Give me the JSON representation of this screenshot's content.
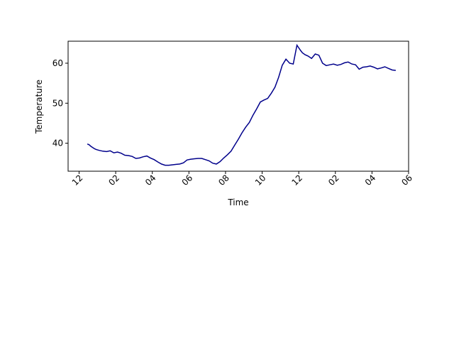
{
  "chart_data": {
    "type": "line",
    "xlabel": "Time",
    "ylabel": "Temperature",
    "x_ticks": [
      "12",
      "02",
      "04",
      "06",
      "08",
      "10",
      "12",
      "02",
      "04",
      "06"
    ],
    "x_range_hours": [
      -0.6,
      18.0
    ],
    "ylim": [
      33.0,
      65.5
    ],
    "y_ticks": [
      40,
      50,
      60
    ],
    "grid": false,
    "legend": "none",
    "series": [
      {
        "color": "#00008b",
        "x_hours": [
          0.45,
          0.55,
          0.65,
          0.75,
          0.85,
          0.95,
          1.1,
          1.3,
          1.5,
          1.7,
          1.9,
          2.1,
          2.3,
          2.5,
          2.7,
          2.9,
          3.1,
          3.3,
          3.5,
          3.7,
          3.9,
          4.1,
          4.3,
          4.5,
          4.7,
          4.9,
          5.1,
          5.3,
          5.5,
          5.7,
          5.9,
          6.1,
          6.3,
          6.5,
          6.7,
          6.9,
          7.1,
          7.3,
          7.5,
          7.7,
          7.9,
          8.1,
          8.3,
          8.5,
          8.7,
          8.9,
          9.1,
          9.3,
          9.5,
          9.7,
          9.9,
          10.1,
          10.3,
          10.5,
          10.7,
          10.9,
          11.1,
          11.3,
          11.5,
          11.7,
          11.9,
          12.1,
          12.2,
          12.35,
          12.5,
          12.7,
          12.9,
          13.1,
          13.3,
          13.5,
          13.7,
          13.9,
          14.1,
          14.3,
          14.5,
          14.7,
          14.9,
          15.1,
          15.3,
          15.5,
          15.7,
          15.9,
          16.1,
          16.3,
          16.5,
          16.7,
          16.9,
          17.1,
          17.3
        ],
        "values": [
          39.8,
          39.6,
          39.2,
          38.9,
          38.6,
          38.4,
          38.2,
          38.0,
          37.9,
          38.1,
          37.6,
          37.8,
          37.5,
          37.0,
          36.9,
          36.7,
          36.2,
          36.3,
          36.6,
          36.8,
          36.3,
          35.9,
          35.3,
          34.8,
          34.5,
          34.5,
          34.6,
          34.7,
          34.8,
          35.1,
          35.8,
          36.0,
          36.1,
          36.2,
          36.2,
          35.9,
          35.6,
          35.0,
          34.8,
          35.4,
          36.3,
          37.1,
          38.0,
          39.5,
          41.0,
          42.6,
          44.0,
          45.2,
          47.0,
          48.6,
          50.3,
          50.8,
          51.2,
          52.5,
          54.0,
          56.5,
          59.5,
          61.0,
          60.0,
          59.8,
          64.5,
          63.2,
          62.6,
          62.1,
          61.8,
          61.2,
          62.3,
          62.0,
          60.0,
          59.4,
          59.6,
          59.8,
          59.5,
          59.7,
          60.1,
          60.3,
          59.8,
          59.6,
          58.5,
          59.0,
          59.1,
          59.3,
          59.0,
          58.6,
          58.8,
          59.1,
          58.7,
          58.3,
          58.2
        ]
      }
    ]
  }
}
